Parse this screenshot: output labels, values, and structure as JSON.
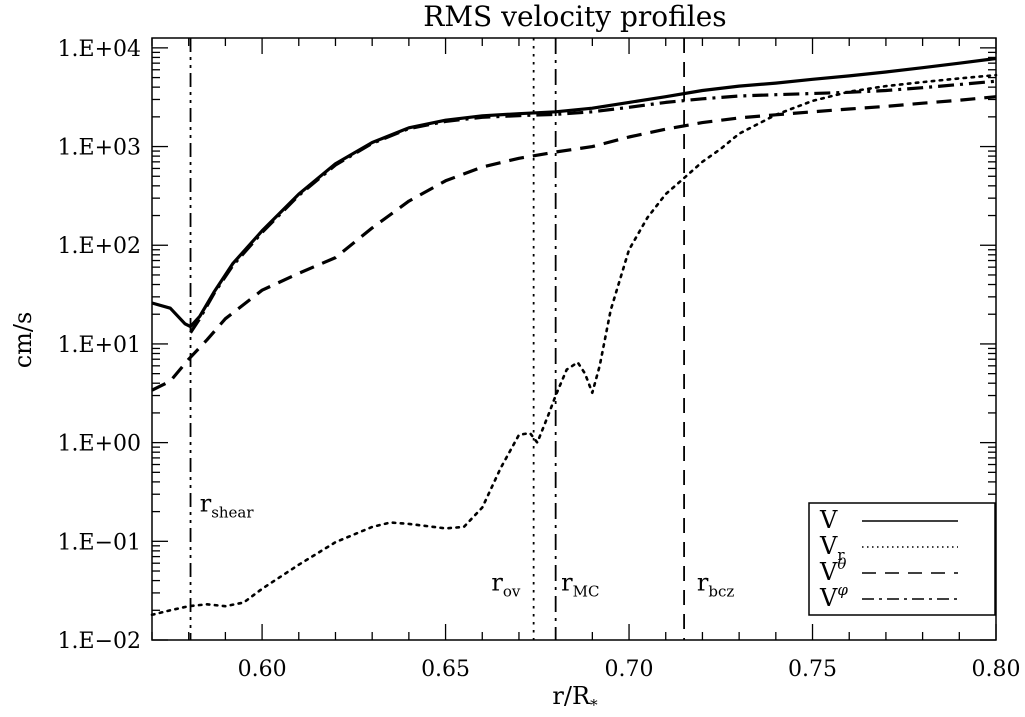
{
  "chart_data": {
    "type": "line",
    "title": "RMS velocity profiles",
    "xlabel": "r/R",
    "xlabel_sub": "*",
    "ylabel": "cm/s",
    "xlim": [
      0.57,
      0.8
    ],
    "ylim_log10": [
      -2,
      4.1
    ],
    "yscale": "log",
    "x_ticks": [
      0.6,
      0.65,
      0.7,
      0.75,
      0.8
    ],
    "x_tick_labels": [
      "0.60",
      "0.65",
      "0.70",
      "0.75",
      "0.80"
    ],
    "y_ticks_log10": [
      -2,
      -1,
      0,
      1,
      2,
      3,
      4
    ],
    "y_tick_labels": [
      "1.E−02",
      "1.E−01",
      "1.E+00",
      "1.E+01",
      "1.E+02",
      "1.E+03",
      "1.E+04"
    ],
    "series": [
      {
        "name": "V",
        "sub": "",
        "sup": "",
        "dash": "solid",
        "width": 3.2,
        "legend_width": 1.4,
        "points": [
          [
            0.57,
            26
          ],
          [
            0.575,
            23
          ],
          [
            0.579,
            16
          ],
          [
            0.5805,
            15
          ],
          [
            0.583,
            19
          ],
          [
            0.587,
            34
          ],
          [
            0.592,
            65
          ],
          [
            0.6,
            140
          ],
          [
            0.61,
            330
          ],
          [
            0.62,
            670
          ],
          [
            0.63,
            1100
          ],
          [
            0.64,
            1550
          ],
          [
            0.65,
            1850
          ],
          [
            0.66,
            2050
          ],
          [
            0.67,
            2150
          ],
          [
            0.68,
            2250
          ],
          [
            0.69,
            2450
          ],
          [
            0.7,
            2800
          ],
          [
            0.71,
            3200
          ],
          [
            0.72,
            3700
          ],
          [
            0.73,
            4100
          ],
          [
            0.74,
            4400
          ],
          [
            0.75,
            4800
          ],
          [
            0.76,
            5200
          ],
          [
            0.77,
            5700
          ],
          [
            0.78,
            6300
          ],
          [
            0.79,
            7000
          ],
          [
            0.8,
            7800
          ]
        ]
      },
      {
        "name": "V",
        "sub": "r",
        "sup": "",
        "dash": "dotted",
        "width": 2.6,
        "legend_width": 1.4,
        "points": [
          [
            0.57,
            0.018
          ],
          [
            0.575,
            0.02
          ],
          [
            0.58,
            0.022
          ],
          [
            0.585,
            0.023
          ],
          [
            0.59,
            0.022
          ],
          [
            0.595,
            0.024
          ],
          [
            0.6,
            0.033
          ],
          [
            0.61,
            0.058
          ],
          [
            0.62,
            0.098
          ],
          [
            0.63,
            0.14
          ],
          [
            0.635,
            0.155
          ],
          [
            0.64,
            0.15
          ],
          [
            0.65,
            0.135
          ],
          [
            0.655,
            0.14
          ],
          [
            0.66,
            0.22
          ],
          [
            0.665,
            0.55
          ],
          [
            0.67,
            1.2
          ],
          [
            0.673,
            1.25
          ],
          [
            0.675,
            1.0
          ],
          [
            0.678,
            1.9
          ],
          [
            0.68,
            3.0
          ],
          [
            0.683,
            5.5
          ],
          [
            0.686,
            6.5
          ],
          [
            0.688,
            5.0
          ],
          [
            0.69,
            3.2
          ],
          [
            0.692,
            6.0
          ],
          [
            0.695,
            22
          ],
          [
            0.7,
            90
          ],
          [
            0.705,
            190
          ],
          [
            0.71,
            330
          ],
          [
            0.715,
            480
          ],
          [
            0.72,
            700
          ],
          [
            0.725,
            950
          ],
          [
            0.73,
            1350
          ],
          [
            0.74,
            2100
          ],
          [
            0.75,
            2900
          ],
          [
            0.76,
            3600
          ],
          [
            0.77,
            4100
          ],
          [
            0.78,
            4500
          ],
          [
            0.79,
            4900
          ],
          [
            0.8,
            5300
          ]
        ]
      },
      {
        "name": "V",
        "sub": "",
        "sup": "θ",
        "dash": "dashed",
        "width": 3.2,
        "legend_width": 1.4,
        "points": [
          [
            0.57,
            3.4
          ],
          [
            0.575,
            4.2
          ],
          [
            0.58,
            7.0
          ],
          [
            0.585,
            11
          ],
          [
            0.59,
            18
          ],
          [
            0.6,
            35
          ],
          [
            0.61,
            52
          ],
          [
            0.62,
            75
          ],
          [
            0.63,
            150
          ],
          [
            0.64,
            280
          ],
          [
            0.65,
            450
          ],
          [
            0.66,
            620
          ],
          [
            0.67,
            760
          ],
          [
            0.68,
            880
          ],
          [
            0.69,
            1000
          ],
          [
            0.7,
            1250
          ],
          [
            0.71,
            1500
          ],
          [
            0.72,
            1750
          ],
          [
            0.73,
            1950
          ],
          [
            0.74,
            2100
          ],
          [
            0.75,
            2250
          ],
          [
            0.76,
            2400
          ],
          [
            0.77,
            2550
          ],
          [
            0.78,
            2750
          ],
          [
            0.79,
            2950
          ],
          [
            0.8,
            3200
          ]
        ]
      },
      {
        "name": "V",
        "sub": "",
        "sup": "φ",
        "dash": "dashdot",
        "width": 3.2,
        "legend_width": 1.4,
        "points": [
          [
            0.5805,
            13
          ],
          [
            0.583,
            18
          ],
          [
            0.587,
            33
          ],
          [
            0.592,
            62
          ],
          [
            0.6,
            135
          ],
          [
            0.61,
            320
          ],
          [
            0.62,
            650
          ],
          [
            0.63,
            1080
          ],
          [
            0.64,
            1520
          ],
          [
            0.65,
            1800
          ],
          [
            0.66,
            1980
          ],
          [
            0.67,
            2060
          ],
          [
            0.68,
            2120
          ],
          [
            0.69,
            2250
          ],
          [
            0.7,
            2500
          ],
          [
            0.71,
            2800
          ],
          [
            0.72,
            3050
          ],
          [
            0.73,
            3250
          ],
          [
            0.74,
            3350
          ],
          [
            0.75,
            3450
          ],
          [
            0.76,
            3550
          ],
          [
            0.77,
            3700
          ],
          [
            0.78,
            3950
          ],
          [
            0.79,
            4250
          ],
          [
            0.8,
            4600
          ]
        ]
      }
    ],
    "vlines": [
      {
        "x": 0.5805,
        "dash": "dashdotdot",
        "label": "r",
        "sub": "shear",
        "label_x": 0.583,
        "label_log10": -0.7
      },
      {
        "x": 0.674,
        "dash": "dotted",
        "label": "r",
        "sub": "ov",
        "label_x": 0.6625,
        "label_log10": -1.5
      },
      {
        "x": 0.68,
        "dash": "dashdot",
        "label": "r",
        "sub": "MC",
        "label_x": 0.6815,
        "label_log10": -1.5
      },
      {
        "x": 0.715,
        "dash": "dashed",
        "label": "r",
        "sub": "bcz",
        "label_x": 0.7185,
        "label_log10": -1.5
      }
    ],
    "legend": {
      "position": "bottom-right",
      "entries": [
        "V",
        "V_r",
        "V^θ",
        "V^φ"
      ]
    },
    "grid": false
  }
}
